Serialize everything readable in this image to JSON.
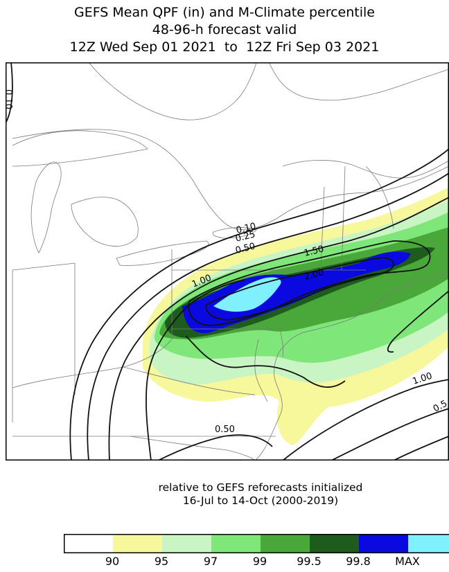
{
  "title": {
    "line1": "GEFS Mean QPF (in) and M-Climate percentile",
    "line2": "48-96-h forecast valid",
    "line3": "12Z Wed Sep 01 2021  to  12Z Fri Sep 03 2021"
  },
  "contour_labels": [
    "0.10",
    "0.25",
    "0.50",
    "1.00",
    "1.50",
    "2.00",
    "0.10",
    "1.00",
    "0.50",
    "0.5"
  ],
  "note": {
    "line1": "relative to GEFS reforecasts initialized",
    "line2": "16-Jul to 14-Oct (2000-2019)"
  },
  "colorbar": {
    "colors": [
      "#ffffff",
      "#f7f79c",
      "#c8f5c3",
      "#7fe67a",
      "#4aa83a",
      "#1e5c1e",
      "#0a0ae0",
      "#80f0ff"
    ],
    "labels": [
      "90",
      "95",
      "97",
      "99",
      "99.5",
      "99.8",
      "MAX"
    ]
  }
}
